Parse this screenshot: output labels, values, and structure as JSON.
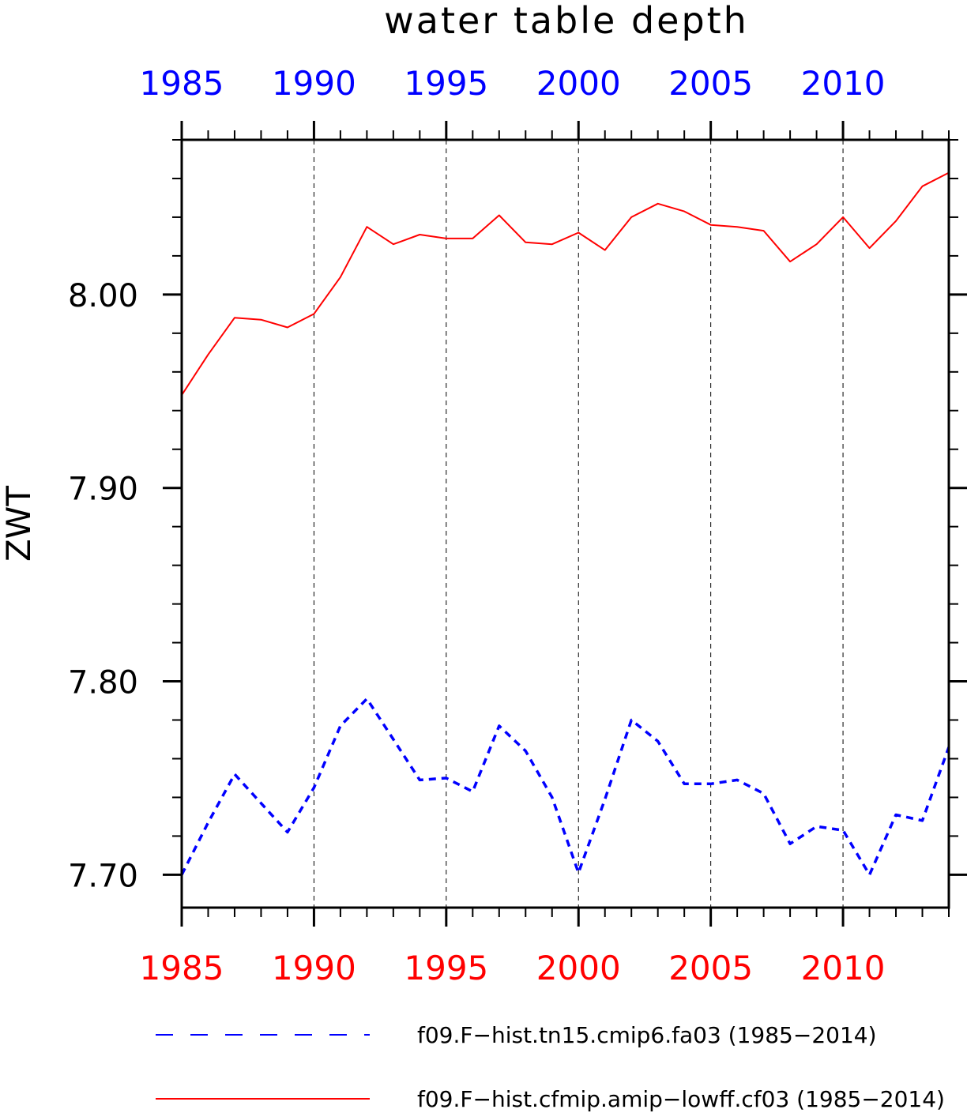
{
  "chart_data": {
    "type": "line",
    "title": "water table depth",
    "xlabel": "",
    "ylabel": "ZWT",
    "xlim": [
      1985,
      2014
    ],
    "ylim": [
      7.683,
      8.08
    ],
    "x_ticks": [
      1985,
      1990,
      1995,
      2000,
      2005,
      2010
    ],
    "y_ticks": [
      7.7,
      7.8,
      7.9,
      8.0
    ],
    "y_tick_labels": [
      "7.70",
      "7.80",
      "7.90",
      "8.00"
    ],
    "grid": "vertical dashed at major x ticks",
    "legend_position": "bottom",
    "x": [
      1985,
      1986,
      1987,
      1988,
      1989,
      1990,
      1991,
      1992,
      1993,
      1994,
      1995,
      1996,
      1997,
      1998,
      1999,
      2000,
      2001,
      2002,
      2003,
      2004,
      2005,
      2006,
      2007,
      2008,
      2009,
      2010,
      2011,
      2012,
      2013,
      2014
    ],
    "series": [
      {
        "name": "f09.F−hist.tn15.cmip6.fa03 (1985−2014)",
        "color": "#0000ff",
        "dash": "dashed",
        "values": [
          7.7,
          7.727,
          7.752,
          7.737,
          7.722,
          7.745,
          7.777,
          7.791,
          7.77,
          7.749,
          7.75,
          7.743,
          7.777,
          7.764,
          7.74,
          7.701,
          7.739,
          7.78,
          7.769,
          7.747,
          7.747,
          7.749,
          7.742,
          7.716,
          7.725,
          7.723,
          7.7,
          7.731,
          7.728,
          7.766
        ]
      },
      {
        "name": "f09.F−hist.cfmip.amip−lowff.cf03 (1985−2014)",
        "color": "#ff0000",
        "dash": "solid",
        "values": [
          7.948,
          7.969,
          7.988,
          7.987,
          7.983,
          7.99,
          8.009,
          8.035,
          8.026,
          8.031,
          8.029,
          8.029,
          8.041,
          8.027,
          8.026,
          8.032,
          8.023,
          8.04,
          8.047,
          8.043,
          8.036,
          8.035,
          8.033,
          8.017,
          8.026,
          8.04,
          8.024,
          8.038,
          8.056,
          8.063
        ]
      }
    ]
  }
}
